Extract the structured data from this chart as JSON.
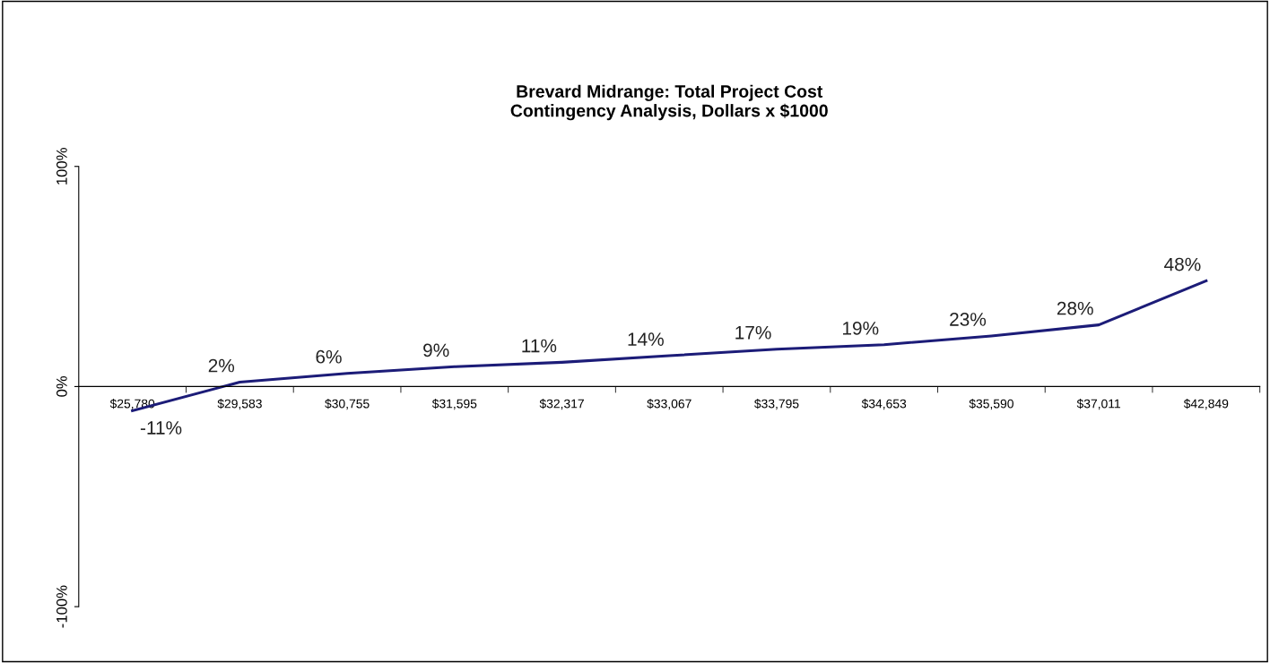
{
  "chart_data": {
    "type": "line",
    "title": "Brevard Midrange: Total Project Cost\nContingency Analysis, Dollars x $1000",
    "categories": [
      "$25,780",
      "$29,583",
      "$30,755",
      "$31,595",
      "$32,317",
      "$33,067",
      "$33,795",
      "$34,653",
      "$35,590",
      "$37,011",
      "$42,849"
    ],
    "series": [
      {
        "color": "#1c1c78",
        "values": [
          -11,
          2,
          6,
          9,
          11,
          14,
          17,
          19,
          23,
          28,
          48
        ],
        "value_labels": [
          "-11%",
          "2%",
          "6%",
          "9%",
          "11%",
          "14%",
          "17%",
          "19%",
          "23%",
          "28%",
          "48%"
        ]
      }
    ],
    "ylim": [
      -100,
      100
    ],
    "yticks": [
      {
        "value": -100,
        "label": "-100%"
      },
      {
        "value": 0,
        "label": "0%"
      },
      {
        "value": 100,
        "label": "100%"
      }
    ],
    "grid": false,
    "legend": false,
    "marker": "none",
    "line_style": "solid"
  }
}
